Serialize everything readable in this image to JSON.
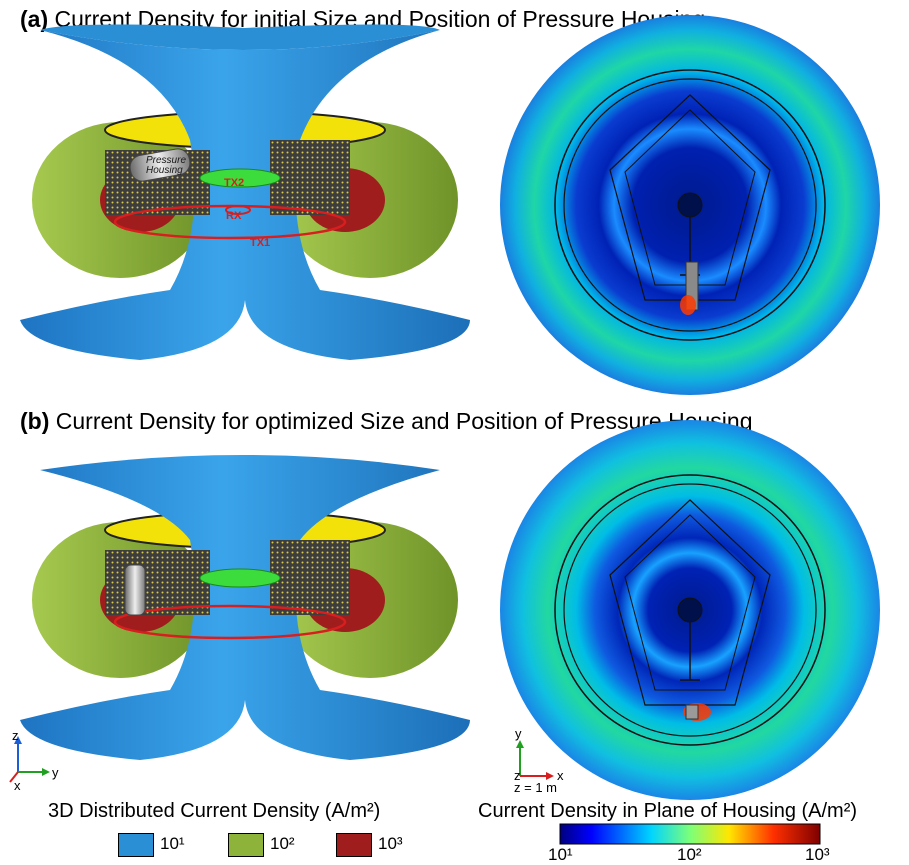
{
  "panel_a": {
    "letter": "(a)",
    "title": "Current Density for initial Size and Position of Pressure Housing",
    "labels": {
      "housing_1": "Pressure",
      "housing_2": "Housing",
      "tx2": "TX2",
      "rx": "RX",
      "tx1": "TX1"
    }
  },
  "panel_b": {
    "letter": "(b)",
    "title": "Current Density for optimized Size and Position of Pressure Housing"
  },
  "axes_3d": {
    "z": "z",
    "y": "y",
    "x": "x"
  },
  "axes_2d": {
    "y": "y",
    "x": "x",
    "z": "z",
    "z_note": "z = 1 m"
  },
  "legend_3d": {
    "title": "3D Distributed Current Density (A/m²)",
    "items": [
      {
        "label": "10¹",
        "color": "#2b8fd6"
      },
      {
        "label": "10²",
        "color": "#8db33a"
      },
      {
        "label": "10³",
        "color": "#a01d1d"
      }
    ]
  },
  "legend_2d": {
    "title": "Current Density in Plane of Housing (A/m²)",
    "ticks": [
      "10¹",
      "10²",
      "10³"
    ]
  },
  "colors": {
    "blue": "#2b8fd6",
    "green": "#8db33a",
    "dark_red": "#a01d1d",
    "yellow": "#f2e20a"
  }
}
